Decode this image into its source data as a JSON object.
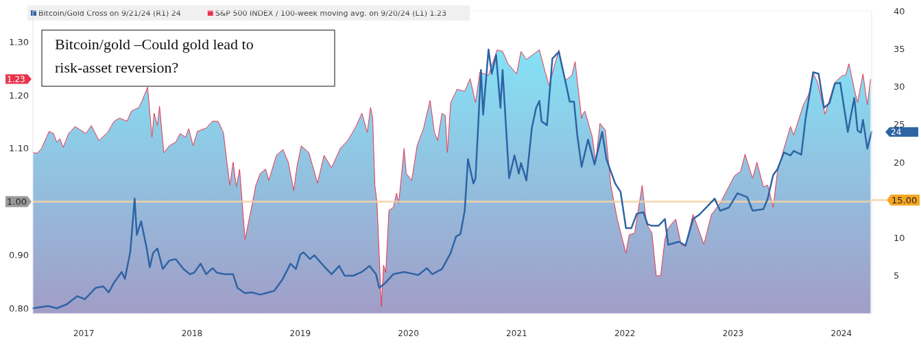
{
  "chart_data": {
    "type": "area",
    "title": "Bitcoin/gold –Could gold lead to risk-asset reversion?",
    "xlim": [
      2017.03,
      2024.78
    ],
    "xticks": [
      {
        "value": 2017.5,
        "label": "2017"
      },
      {
        "value": 2018.5,
        "label": "2018"
      },
      {
        "value": 2019.5,
        "label": "2019"
      },
      {
        "value": 2020.5,
        "label": "2020"
      },
      {
        "value": 2021.5,
        "label": "2021"
      },
      {
        "value": 2022.5,
        "label": "2022"
      },
      {
        "value": 2023.5,
        "label": "2023"
      },
      {
        "value": 2024.5,
        "label": "2024"
      }
    ],
    "ylim": [
      0.79,
      1.358
    ],
    "yticks": [
      {
        "value": 0.8,
        "label": "0.80"
      },
      {
        "value": 0.9,
        "label": "0.90"
      },
      {
        "value": 1.1,
        "label": "1.10"
      },
      {
        "value": 1.2,
        "label": "1.20"
      },
      {
        "value": 1.3,
        "label": "1.30"
      }
    ],
    "y2lim": [
      0,
      40
    ],
    "y2ticks": [
      5,
      10,
      20,
      25,
      30,
      35,
      40
    ],
    "annotations": [
      "1.23",
      "24"
    ],
    "ref_lines": [
      {
        "axis": "y",
        "value": 1.0,
        "label": "1.00",
        "color": "#f2d3a8"
      },
      {
        "axis": "y2",
        "value": 15,
        "label": "15.00",
        "color": "#f2d3a8"
      }
    ],
    "legend": "top left",
    "grid": false,
    "series": [
      {
        "name": "S&P 500 INDEX / 100-week moving avg. on 9/20/24 (L1) 1.23",
        "color": "#e8344e",
        "x": [
          2017.03,
          2017.07,
          2017.11,
          2017.18,
          2017.22,
          2017.25,
          2017.28,
          2017.31,
          2017.36,
          2017.42,
          2017.52,
          2017.57,
          2017.64,
          2017.72,
          2017.78,
          2017.83,
          2017.9,
          2017.94,
          2018.01,
          2018.04,
          2018.09,
          2018.13,
          2018.15,
          2018.18,
          2018.2,
          2018.24,
          2018.29,
          2018.35,
          2018.39,
          2018.44,
          2018.47,
          2018.51,
          2018.55,
          2018.63,
          2018.69,
          2018.74,
          2018.79,
          2018.82,
          2018.85,
          2018.88,
          2018.91,
          2018.94,
          2018.96,
          2018.99,
          2019.05,
          2019.09,
          2019.13,
          2019.18,
          2019.21,
          2019.28,
          2019.34,
          2019.39,
          2019.44,
          2019.47,
          2019.51,
          2019.58,
          2019.66,
          2019.72,
          2019.79,
          2019.87,
          2019.94,
          2020.02,
          2020.07,
          2020.12,
          2020.15,
          2020.17,
          2020.19,
          2020.21,
          2020.25,
          2020.27,
          2020.29,
          2020.32,
          2020.36,
          2020.39,
          2020.41,
          2020.46,
          2020.48,
          2020.53,
          2020.58,
          2020.64,
          2020.7,
          2020.74,
          2020.77,
          2020.81,
          2020.84,
          2020.86,
          2020.89,
          2020.95,
          2021.02,
          2021.07,
          2021.12,
          2021.16,
          2021.24,
          2021.32,
          2021.37,
          2021.42,
          2021.5,
          2021.54,
          2021.59,
          2021.71,
          2021.76,
          2021.8,
          2021.89,
          2021.95,
          2022.01,
          2022.04,
          2022.1,
          2022.11,
          2022.13,
          2022.2,
          2022.23,
          2022.27,
          2022.32,
          2022.37,
          2022.43,
          2022.51,
          2022.54,
          2022.59,
          2022.66,
          2022.7,
          2022.75,
          2022.79,
          2022.83,
          2022.87,
          2022.9,
          2022.95,
          2022.97,
          2023.02,
          2023.06,
          2023.13,
          2023.17,
          2023.23,
          2023.3,
          2023.38,
          2023.46,
          2023.51,
          2023.57,
          2023.61,
          2023.68,
          2023.72,
          2023.78,
          2023.82,
          2023.87,
          2023.91,
          2023.97,
          2024.03,
          2024.06,
          2024.15,
          2024.2,
          2024.24,
          2024.28,
          2024.35,
          2024.44,
          2024.51,
          2024.54,
          2024.57,
          2024.62,
          2024.65,
          2024.7,
          2024.74,
          2024.77
        ],
        "values": [
          1.092,
          1.091,
          1.1,
          1.132,
          1.128,
          1.112,
          1.118,
          1.102,
          1.128,
          1.141,
          1.128,
          1.143,
          1.115,
          1.13,
          1.151,
          1.157,
          1.151,
          1.17,
          1.177,
          1.19,
          1.215,
          1.121,
          1.166,
          1.143,
          1.179,
          1.092,
          1.105,
          1.112,
          1.128,
          1.121,
          1.137,
          1.105,
          1.132,
          1.138,
          1.151,
          1.151,
          1.13,
          1.079,
          1.031,
          1.074,
          1.028,
          1.061,
          1.01,
          0.929,
          0.989,
          1.031,
          1.053,
          1.061,
          1.04,
          1.087,
          1.098,
          1.074,
          1.021,
          1.066,
          1.105,
          1.092,
          1.035,
          1.087,
          1.064,
          1.1,
          1.115,
          1.143,
          1.166,
          1.13,
          1.177,
          1.156,
          1.031,
          0.997,
          0.803,
          0.881,
          0.867,
          0.984,
          0.989,
          1.016,
          0.997,
          1.1,
          1.053,
          1.04,
          1.105,
          1.138,
          1.19,
          1.13,
          1.115,
          1.166,
          1.162,
          1.092,
          1.186,
          1.211,
          1.207,
          1.231,
          1.186,
          1.243,
          1.237,
          1.285,
          1.282,
          1.259,
          1.24,
          1.282,
          1.267,
          1.285,
          1.246,
          1.218,
          1.285,
          1.228,
          1.237,
          1.263,
          1.156,
          1.164,
          1.17,
          1.121,
          1.074,
          1.147,
          1.134,
          1.031,
          0.967,
          0.903,
          0.938,
          0.941,
          1.031,
          0.958,
          0.941,
          0.861,
          0.861,
          0.929,
          0.95,
          0.963,
          0.967,
          0.92,
          0.916,
          0.976,
          0.954,
          0.92,
          0.976,
          0.997,
          1.028,
          1.048,
          1.057,
          1.089,
          1.044,
          1.074,
          1.028,
          1.031,
          0.989,
          1.057,
          1.1,
          1.141,
          1.125,
          1.182,
          1.202,
          1.241,
          1.224,
          1.164,
          1.224,
          1.237,
          1.237,
          1.259,
          1.211,
          1.186,
          1.24,
          1.182,
          1.23
        ]
      },
      {
        "name": "Bitcoin/Gold Cross on 9/21/24 (R1) 24",
        "type": "line",
        "axis": "y2",
        "color": "#2e64a4",
        "x": [
          2017.03,
          2017.17,
          2017.25,
          2017.34,
          2017.44,
          2017.51,
          2017.55,
          2017.61,
          2017.68,
          2017.73,
          2017.78,
          2017.85,
          2017.88,
          2017.93,
          2017.97,
          2017.99,
          2018.03,
          2018.08,
          2018.11,
          2018.14,
          2018.18,
          2018.23,
          2018.29,
          2018.35,
          2018.42,
          2018.48,
          2018.52,
          2018.58,
          2018.63,
          2018.69,
          2018.73,
          2018.8,
          2018.88,
          2018.92,
          2018.99,
          2019.05,
          2019.13,
          2019.21,
          2019.26,
          2019.34,
          2019.41,
          2019.46,
          2019.5,
          2019.53,
          2019.59,
          2019.63,
          2019.71,
          2019.79,
          2019.86,
          2019.91,
          2019.99,
          2020.07,
          2020.14,
          2020.2,
          2020.23,
          2020.29,
          2020.36,
          2020.46,
          2020.59,
          2020.67,
          2020.72,
          2020.81,
          2020.89,
          2020.94,
          2020.98,
          2021.02,
          2021.05,
          2021.1,
          2021.12,
          2021.17,
          2021.19,
          2021.24,
          2021.27,
          2021.31,
          2021.35,
          2021.37,
          2021.43,
          2021.48,
          2021.52,
          2021.54,
          2021.59,
          2021.64,
          2021.68,
          2021.71,
          2021.73,
          2021.78,
          2021.83,
          2021.89,
          2021.95,
          2021.99,
          2022.03,
          2022.06,
          2022.1,
          2022.16,
          2022.22,
          2022.29,
          2022.33,
          2022.41,
          2022.46,
          2022.51,
          2022.56,
          2022.61,
          2022.67,
          2022.71,
          2022.75,
          2022.81,
          2022.87,
          2022.9,
          2023.0,
          2023.06,
          2023.13,
          2023.19,
          2023.25,
          2023.33,
          2023.38,
          2023.46,
          2023.54,
          2023.63,
          2023.68,
          2023.78,
          2023.82,
          2023.87,
          2023.91,
          2023.97,
          2024.03,
          2024.06,
          2024.13,
          2024.17,
          2024.24,
          2024.29,
          2024.34,
          2024.39,
          2024.44,
          2024.49,
          2024.56,
          2024.62,
          2024.65,
          2024.68,
          2024.7,
          2024.74,
          2024.78
        ],
        "values": [
          0.7,
          1.0,
          0.7,
          1.2,
          2.3,
          1.9,
          2.5,
          3.4,
          3.6,
          2.8,
          4.1,
          5.5,
          4.6,
          8.2,
          15.2,
          10.4,
          12.2,
          8.7,
          6.1,
          8.0,
          8.6,
          5.9,
          7.0,
          7.2,
          5.9,
          5.2,
          5.4,
          6.6,
          5.2,
          6.0,
          5.4,
          5.2,
          5.2,
          3.4,
          2.7,
          2.8,
          2.5,
          2.8,
          3.0,
          4.6,
          6.6,
          5.9,
          7.8,
          8.1,
          7.2,
          7.7,
          6.4,
          5.2,
          6.3,
          5.0,
          5.0,
          5.5,
          6.3,
          5.2,
          3.4,
          4.1,
          5.2,
          5.5,
          5.1,
          6.0,
          5.2,
          5.9,
          8.0,
          10.2,
          10.5,
          13.6,
          20.4,
          17.2,
          17.9,
          32.2,
          26.3,
          34.9,
          31.7,
          34.2,
          27.2,
          32.2,
          17.9,
          20.9,
          18.5,
          19.9,
          17.6,
          24.5,
          27.2,
          28.1,
          25.4,
          24.9,
          33.7,
          34.6,
          30.7,
          28.0,
          28.0,
          23.6,
          19.4,
          23.0,
          19.7,
          24.0,
          20.4,
          17.2,
          16.1,
          11.3,
          11.3,
          13.2,
          13.4,
          11.8,
          11.6,
          11.6,
          12.5,
          9.1,
          9.5,
          9.0,
          12.5,
          13.1,
          14.0,
          15.2,
          13.6,
          14.0,
          15.9,
          15.4,
          13.6,
          13.8,
          15.2,
          18.3,
          19.1,
          21.3,
          20.9,
          21.5,
          21.0,
          25.8,
          31.9,
          31.7,
          27.2,
          27.8,
          30.4,
          30.5,
          24.0,
          28.5,
          24.2,
          23.9,
          25.6,
          21.8,
          24
        ]
      }
    ]
  }
}
